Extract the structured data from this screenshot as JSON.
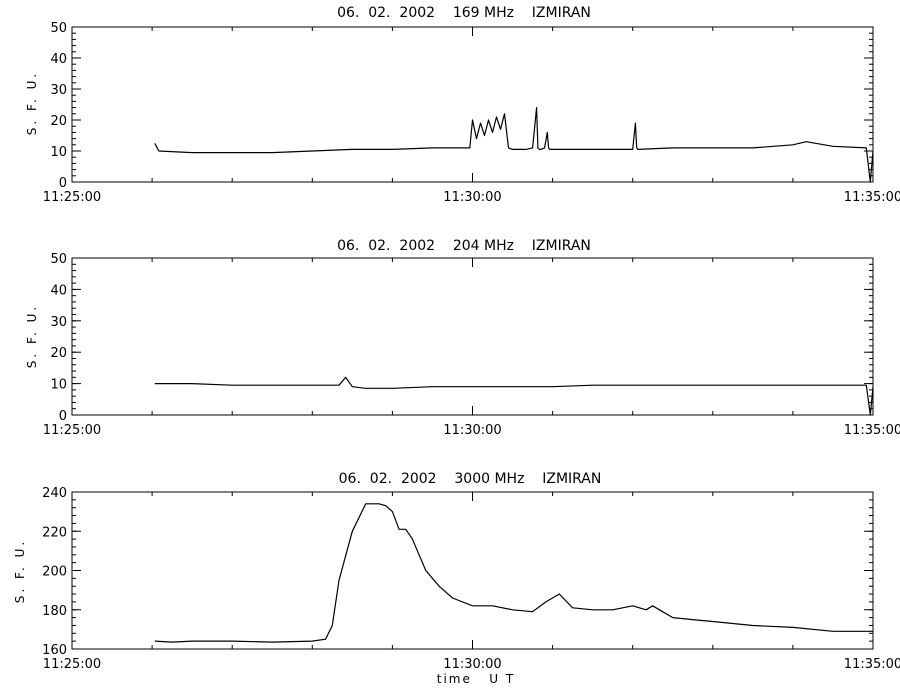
{
  "chart_data": [
    {
      "type": "line",
      "title": "06.  02.  2002    169 MHz    IZMIRAN",
      "ylabel": "S. F. U.",
      "xlabel": "",
      "ylim": [
        0,
        50
      ],
      "yticks": [
        0,
        10,
        20,
        30,
        40,
        50
      ],
      "yticklabels": [
        "0",
        "10",
        "20",
        "30",
        "40",
        "50"
      ],
      "xlim": [
        "11:25:00",
        "11:35:00"
      ],
      "xticklabels": [
        "11:25:00",
        "11:30:00",
        "11:35:00"
      ],
      "grid": false,
      "series": [
        {
          "x": [
            "11:26:02",
            "11:26:05",
            "11:26:30",
            "11:27:00",
            "11:27:30",
            "11:28:00",
            "11:28:30",
            "11:29:00",
            "11:29:30",
            "11:29:58",
            "11:30:00",
            "11:30:03",
            "11:30:06",
            "11:30:09",
            "11:30:12",
            "11:30:15",
            "11:30:18",
            "11:30:21",
            "11:30:24",
            "11:30:27",
            "11:30:30",
            "11:30:33",
            "11:30:36",
            "11:30:40",
            "11:30:45",
            "11:30:48",
            "11:30:49",
            "11:30:50",
            "11:30:51",
            "11:30:54",
            "11:30:56",
            "11:30:57",
            "11:30:58",
            "11:31:00",
            "11:31:30",
            "11:32:00",
            "11:32:02",
            "11:32:03",
            "11:32:04",
            "11:32:30",
            "11:33:00",
            "11:33:30",
            "11:34:00",
            "11:34:10",
            "11:34:30",
            "11:34:55",
            "11:34:58",
            "11:35:00"
          ],
          "values": [
            12.5,
            10,
            9.5,
            9.5,
            9.5,
            10,
            10.5,
            10.5,
            11,
            11,
            20,
            14,
            19,
            15,
            20,
            16,
            21,
            17,
            22,
            11,
            10.5,
            10.5,
            10.5,
            10.5,
            11,
            24,
            11,
            10.5,
            10.5,
            11,
            16,
            11,
            10.5,
            10.5,
            10.5,
            10.5,
            19,
            11,
            10.5,
            11,
            11,
            11,
            12,
            13,
            11.5,
            11,
            0,
            10
          ]
        }
      ]
    },
    {
      "type": "line",
      "title": "06.  02.  2002    204 MHz    IZMIRAN",
      "ylabel": "S. F. U.",
      "xlabel": "",
      "ylim": [
        0,
        50
      ],
      "yticks": [
        0,
        10,
        20,
        30,
        40,
        50
      ],
      "yticklabels": [
        "0",
        "10",
        "20",
        "30",
        "40",
        "50"
      ],
      "xlim": [
        "11:25:00",
        "11:35:00"
      ],
      "xticklabels": [
        "11:25:00",
        "11:30:00",
        "11:35:00"
      ],
      "grid": false,
      "series": [
        {
          "x": [
            "11:26:02",
            "11:26:30",
            "11:27:00",
            "11:27:30",
            "11:28:00",
            "11:28:20",
            "11:28:25",
            "11:28:30",
            "11:28:40",
            "11:29:00",
            "11:29:30",
            "11:30:00",
            "11:30:30",
            "11:31:00",
            "11:31:30",
            "11:32:00",
            "11:32:30",
            "11:33:00",
            "11:33:30",
            "11:34:00",
            "11:34:30",
            "11:34:55",
            "11:34:58",
            "11:35:00"
          ],
          "values": [
            10,
            10,
            9.5,
            9.5,
            9.5,
            9.5,
            12,
            9,
            8.5,
            8.5,
            9,
            9,
            9,
            9,
            9.5,
            9.5,
            9.5,
            9.5,
            9.5,
            9.5,
            9.5,
            9.5,
            0,
            9
          ]
        }
      ]
    },
    {
      "type": "line",
      "title": "06.  02.  2002    3000 MHz    IZMIRAN",
      "ylabel": "S. F. U.",
      "xlabel": "time   U T",
      "ylim": [
        160,
        240
      ],
      "yticks": [
        160,
        180,
        200,
        220,
        240
      ],
      "yticklabels": [
        "160",
        "180",
        "200",
        "220",
        "240"
      ],
      "xlim": [
        "11:25:00",
        "11:35:00"
      ],
      "xticklabels": [
        "11:25:00",
        "11:30:00",
        "11:35:00"
      ],
      "grid": false,
      "series": [
        {
          "x": [
            "11:26:02",
            "11:26:15",
            "11:26:30",
            "11:27:00",
            "11:27:30",
            "11:28:00",
            "11:28:10",
            "11:28:15",
            "11:28:20",
            "11:28:30",
            "11:28:40",
            "11:28:50",
            "11:28:55",
            "11:29:00",
            "11:29:05",
            "11:29:10",
            "11:29:15",
            "11:29:20",
            "11:29:25",
            "11:29:35",
            "11:29:45",
            "11:30:00",
            "11:30:15",
            "11:30:30",
            "11:30:45",
            "11:30:55",
            "11:31:05",
            "11:31:15",
            "11:31:30",
            "11:31:45",
            "11:32:00",
            "11:32:10",
            "11:32:15",
            "11:32:20",
            "11:32:30",
            "11:32:45",
            "11:33:00",
            "11:33:15",
            "11:33:30",
            "11:34:00",
            "11:34:30",
            "11:35:00"
          ],
          "values": [
            164,
            163.5,
            164,
            164,
            163.5,
            164,
            165,
            172,
            195,
            220,
            234,
            234,
            233,
            230,
            221,
            221,
            216,
            208,
            200,
            192,
            186,
            182,
            182,
            180,
            179,
            184,
            188,
            181,
            180,
            180,
            182,
            180,
            182,
            180,
            176,
            175,
            174,
            173,
            172,
            171,
            169,
            169
          ]
        }
      ]
    }
  ]
}
